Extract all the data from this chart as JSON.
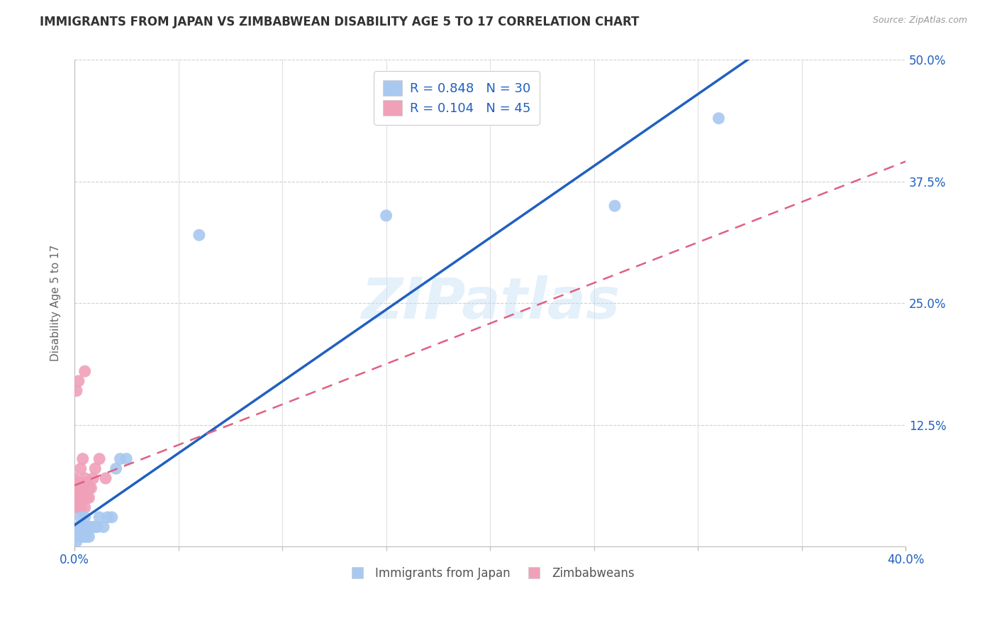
{
  "title": "IMMIGRANTS FROM JAPAN VS ZIMBABWEAN DISABILITY AGE 5 TO 17 CORRELATION CHART",
  "source": "Source: ZipAtlas.com",
  "ylabel": "Disability Age 5 to 17",
  "xmin": 0.0,
  "xmax": 0.4,
  "ymin": 0.0,
  "ymax": 0.5,
  "xtick_vals": [
    0.0,
    0.4
  ],
  "xtick_labels": [
    "0.0%",
    "40.0%"
  ],
  "ytick_vals": [
    0.0,
    0.125,
    0.25,
    0.375,
    0.5
  ],
  "ytick_labels": [
    "",
    "12.5%",
    "25.0%",
    "37.5%",
    "50.0%"
  ],
  "blue_R": 0.848,
  "blue_N": 30,
  "pink_R": 0.104,
  "pink_N": 45,
  "blue_color": "#a8c8f0",
  "pink_color": "#f0a0b8",
  "line_blue": "#2060c0",
  "line_pink": "#e06080",
  "legend_label_blue": "Immigrants from Japan",
  "legend_label_pink": "Zimbabweans",
  "watermark": "ZIPatlas",
  "blue_x": [
    0.001,
    0.002,
    0.002,
    0.003,
    0.003,
    0.003,
    0.004,
    0.004,
    0.005,
    0.005,
    0.005,
    0.006,
    0.006,
    0.007,
    0.007,
    0.008,
    0.009,
    0.01,
    0.011,
    0.012,
    0.014,
    0.016,
    0.018,
    0.02,
    0.022,
    0.025,
    0.06,
    0.15,
    0.26,
    0.31
  ],
  "blue_y": [
    0.005,
    0.01,
    0.02,
    0.01,
    0.02,
    0.03,
    0.01,
    0.02,
    0.01,
    0.02,
    0.03,
    0.01,
    0.02,
    0.01,
    0.02,
    0.02,
    0.02,
    0.02,
    0.02,
    0.03,
    0.02,
    0.03,
    0.03,
    0.08,
    0.09,
    0.09,
    0.32,
    0.34,
    0.35,
    0.44
  ],
  "pink_x": [
    0.0,
    0.0,
    0.0,
    0.0,
    0.0,
    0.001,
    0.001,
    0.001,
    0.001,
    0.001,
    0.001,
    0.002,
    0.002,
    0.002,
    0.002,
    0.002,
    0.003,
    0.003,
    0.003,
    0.003,
    0.003,
    0.004,
    0.004,
    0.004,
    0.004,
    0.005,
    0.005,
    0.005,
    0.005,
    0.005,
    0.006,
    0.006,
    0.006,
    0.007,
    0.007,
    0.008,
    0.009,
    0.01,
    0.012,
    0.015,
    0.001,
    0.002,
    0.003,
    0.004,
    0.005
  ],
  "pink_y": [
    0.04,
    0.05,
    0.055,
    0.06,
    0.07,
    0.04,
    0.045,
    0.05,
    0.055,
    0.06,
    0.065,
    0.04,
    0.05,
    0.055,
    0.06,
    0.065,
    0.04,
    0.05,
    0.055,
    0.06,
    0.065,
    0.05,
    0.055,
    0.06,
    0.065,
    0.04,
    0.05,
    0.055,
    0.06,
    0.07,
    0.05,
    0.055,
    0.065,
    0.05,
    0.06,
    0.06,
    0.07,
    0.08,
    0.09,
    0.07,
    0.16,
    0.17,
    0.08,
    0.09,
    0.18
  ],
  "grid_color": "#d0d0d0",
  "grid_yticks": [
    0.125,
    0.25,
    0.375,
    0.5
  ]
}
